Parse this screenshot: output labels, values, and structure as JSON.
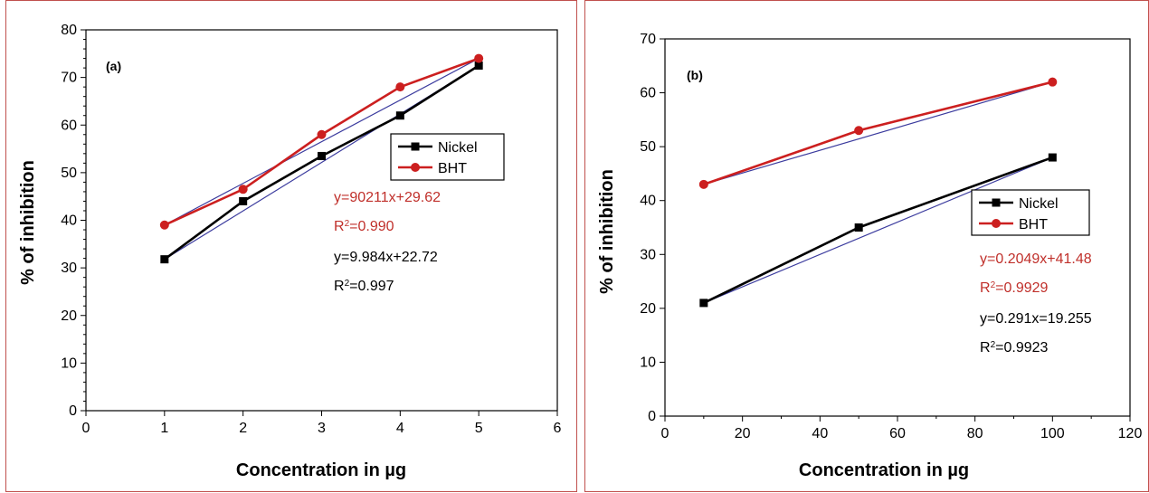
{
  "chart_data": [
    {
      "type": "line",
      "panel_label": "(a)",
      "xlabel": "Concentration in µg",
      "ylabel": "% of inhibition",
      "xlim": [
        0,
        6
      ],
      "ylim": [
        0,
        80
      ],
      "xticks": [
        0,
        1,
        2,
        3,
        4,
        5,
        6
      ],
      "yticks": [
        0,
        10,
        20,
        30,
        40,
        50,
        60,
        70,
        80
      ],
      "legend_position": "upper-right",
      "series": [
        {
          "name": "Nickel",
          "color": "#000000",
          "marker": "square",
          "x": [
            1,
            2,
            3,
            4,
            5
          ],
          "values": [
            31.8,
            44,
            53.5,
            62,
            72.5
          ]
        },
        {
          "name": "BHT",
          "color": "#cc1f1f",
          "marker": "circle",
          "x": [
            1,
            2,
            3,
            4,
            5
          ],
          "values": [
            39,
            46.5,
            58,
            68,
            74
          ]
        }
      ],
      "fit_lines": [
        {
          "color": "#3b3b9e",
          "x": [
            1,
            5
          ],
          "values": [
            31.8,
            72.5
          ]
        },
        {
          "color": "#3b3b9e",
          "x": [
            1,
            5
          ],
          "values": [
            39,
            74
          ]
        }
      ],
      "annotations": [
        {
          "color": "#c0302b",
          "equation": "y=90211x+29.62",
          "r2": "=0.990"
        },
        {
          "color": "#000000",
          "equation": "y=9.984x+22.72",
          "r2": "=0.997"
        }
      ]
    },
    {
      "type": "line",
      "panel_label": "(b)",
      "xlabel": "Concentration in µg",
      "ylabel": "% of inhibition",
      "xlim": [
        0,
        120
      ],
      "ylim": [
        0,
        70
      ],
      "xticks": [
        0,
        20,
        40,
        60,
        80,
        100,
        120
      ],
      "yticks": [
        0,
        10,
        20,
        30,
        40,
        50,
        60,
        70
      ],
      "legend_position": "center-right",
      "series": [
        {
          "name": "Nickel",
          "color": "#000000",
          "marker": "square",
          "x": [
            10,
            50,
            100
          ],
          "values": [
            21,
            35,
            48
          ]
        },
        {
          "name": "BHT",
          "color": "#cc1f1f",
          "marker": "circle",
          "x": [
            10,
            50,
            100
          ],
          "values": [
            43,
            53,
            62
          ]
        }
      ],
      "fit_lines": [
        {
          "color": "#3b3b9e",
          "x": [
            10,
            100
          ],
          "values": [
            21,
            48
          ]
        },
        {
          "color": "#3b3b9e",
          "x": [
            10,
            100
          ],
          "values": [
            43,
            62
          ]
        }
      ],
      "annotations": [
        {
          "color": "#c0302b",
          "equation": "y=0.2049x+41.48",
          "r2": "=0.9929"
        },
        {
          "color": "#000000",
          "equation": "y=0.291x=19.255",
          "r2": "=0.9923"
        }
      ]
    }
  ]
}
